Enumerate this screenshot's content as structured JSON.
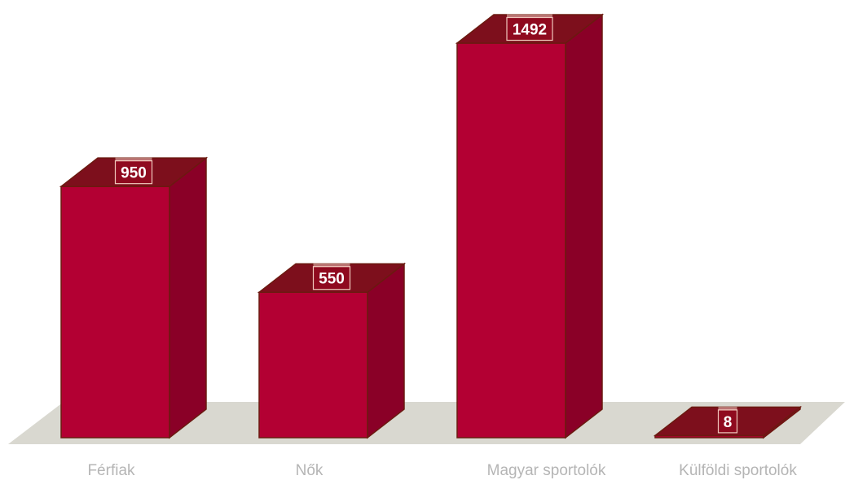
{
  "chart_data": {
    "type": "bar",
    "style": "3d",
    "categories": [
      "Férfiak",
      "Nők",
      "Magyar sportolók",
      "Külföldi sportolók"
    ],
    "values": [
      950,
      550,
      1492,
      8
    ],
    "data_labels": [
      "950",
      "550",
      "1492",
      "8"
    ],
    "title": "",
    "xlabel": "",
    "ylabel": "",
    "ylim": [
      0,
      1600
    ],
    "grid": false,
    "legend": "none",
    "colors": {
      "bar_front": "#b30033",
      "bar_side": "#8a0027",
      "bar_top": "#7d0f1c",
      "bar_edge": "#6b1a10",
      "floor": "#d9d8d0",
      "label_bg": "#8f0a1f",
      "label_border": "#f1c9bd",
      "category_text": "#b5b5b5"
    }
  }
}
